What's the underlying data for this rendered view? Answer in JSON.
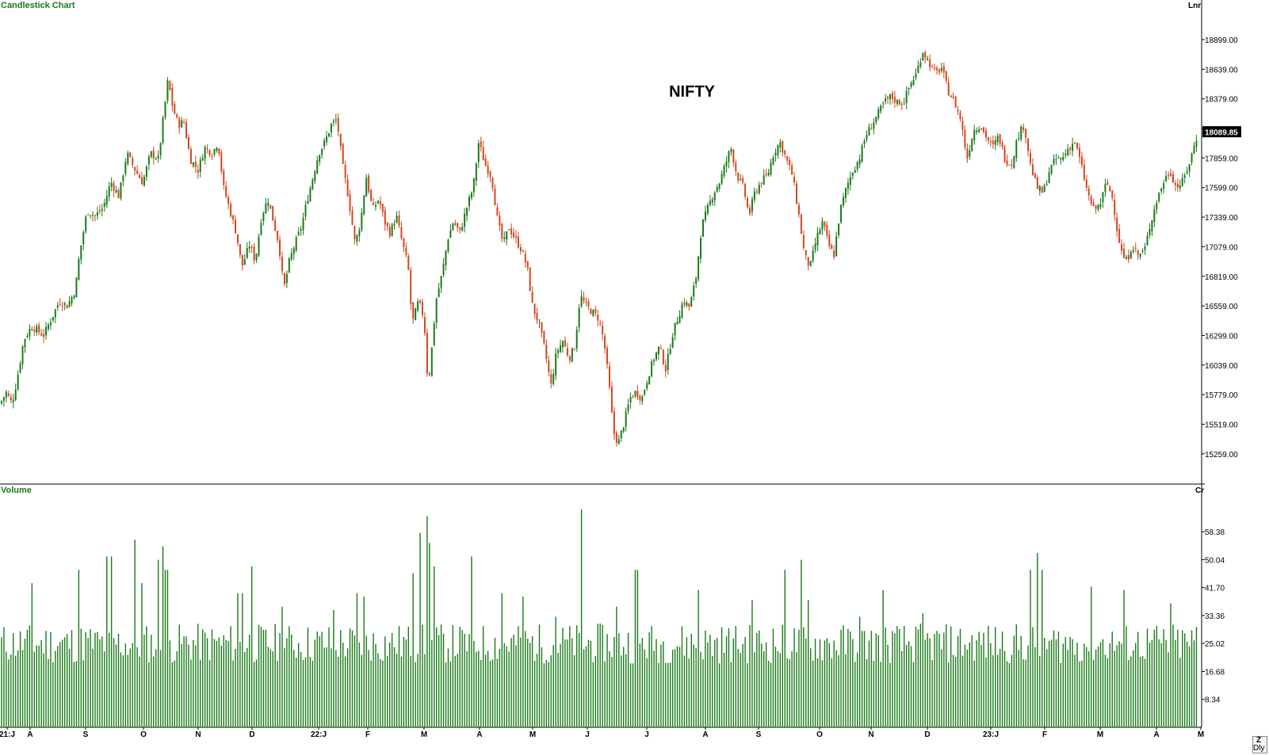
{
  "panels": {
    "price_label": "Candlestick Chart",
    "price_scale": "Lnr",
    "volume_label": "Volume",
    "volume_scale": "Cr"
  },
  "corner_buttons": {
    "top": "Z",
    "bottom": "Dly"
  },
  "colors": {
    "up": "#1a7a1a",
    "down": "#d2461e",
    "label_green": "#1a7a1a",
    "axis": "#000000"
  },
  "chart_data": [
    {
      "type": "candlestick",
      "title": "NIFTY",
      "scale": "linear",
      "ylim": [
        15000,
        19150
      ],
      "yticks": [
        18899,
        18639,
        18379,
        18119,
        17859,
        17599,
        17339,
        17079,
        16819,
        16559,
        16299,
        16039,
        15779,
        15519,
        15259
      ],
      "ytick_labels": [
        "18899.00",
        "18639.00",
        "18379.00",
        "",
        "17859.00",
        "17599.00",
        "17339.00",
        "17079.00",
        "16819.00",
        "16559.00",
        "16299.00",
        "16039.00",
        "15779.00",
        "15519.00",
        "15259.00"
      ],
      "last_price": "18089.85",
      "xticks": [
        "21:J",
        "A",
        "S",
        "O",
        "N",
        "D",
        "22:J",
        "F",
        "M",
        "A",
        "M",
        "J",
        "J",
        "A",
        "S",
        "O",
        "N",
        "D",
        "23:J",
        "F",
        "M",
        "A",
        "M"
      ],
      "close_path": [
        [
          0,
          15700
        ],
        [
          8,
          15800
        ],
        [
          15,
          15700
        ],
        [
          20,
          15860
        ],
        [
          25,
          16050
        ],
        [
          30,
          16260
        ],
        [
          40,
          16380
        ],
        [
          55,
          16300
        ],
        [
          65,
          16450
        ],
        [
          75,
          16600
        ],
        [
          85,
          16560
        ],
        [
          95,
          16700
        ],
        [
          100,
          17000
        ],
        [
          110,
          17400
        ],
        [
          120,
          17350
        ],
        [
          130,
          17420
        ],
        [
          140,
          17650
        ],
        [
          150,
          17520
        ],
        [
          160,
          17900
        ],
        [
          170,
          17760
        ],
        [
          180,
          17640
        ],
        [
          190,
          17900
        ],
        [
          200,
          17850
        ],
        [
          205,
          18150
        ],
        [
          212,
          18550
        ],
        [
          218,
          18300
        ],
        [
          225,
          18150
        ],
        [
          232,
          18180
        ],
        [
          240,
          17850
        ],
        [
          250,
          17750
        ],
        [
          258,
          17950
        ],
        [
          268,
          17900
        ],
        [
          275,
          18000
        ],
        [
          282,
          17600
        ],
        [
          290,
          17400
        ],
        [
          298,
          17200
        ],
        [
          305,
          16900
        ],
        [
          315,
          17100
        ],
        [
          322,
          16950
        ],
        [
          330,
          17350
        ],
        [
          338,
          17500
        ],
        [
          345,
          17300
        ],
        [
          352,
          17100
        ],
        [
          358,
          16700
        ],
        [
          365,
          16950
        ],
        [
          372,
          17100
        ],
        [
          380,
          17250
        ],
        [
          388,
          17500
        ],
        [
          395,
          17700
        ],
        [
          402,
          17900
        ],
        [
          410,
          18000
        ],
        [
          418,
          18150
        ],
        [
          425,
          18200
        ],
        [
          432,
          17800
        ],
        [
          440,
          17500
        ],
        [
          448,
          17100
        ],
        [
          455,
          17300
        ],
        [
          462,
          17700
        ],
        [
          470,
          17400
        ],
        [
          478,
          17500
        ],
        [
          485,
          17300
        ],
        [
          492,
          17200
        ],
        [
          500,
          17350
        ],
        [
          508,
          17100
        ],
        [
          515,
          16900
        ],
        [
          520,
          16400
        ],
        [
          528,
          16600
        ],
        [
          535,
          16450
        ],
        [
          540,
          15850
        ],
        [
          545,
          16200
        ],
        [
          550,
          16600
        ],
        [
          558,
          16850
        ],
        [
          565,
          17150
        ],
        [
          572,
          17300
        ],
        [
          580,
          17200
        ],
        [
          590,
          17450
        ],
        [
          597,
          17600
        ],
        [
          604,
          18000
        ],
        [
          612,
          17800
        ],
        [
          620,
          17700
        ],
        [
          628,
          17300
        ],
        [
          635,
          17100
        ],
        [
          642,
          17250
        ],
        [
          650,
          17150
        ],
        [
          658,
          17050
        ],
        [
          665,
          16900
        ],
        [
          672,
          16550
        ],
        [
          680,
          16400
        ],
        [
          688,
          16150
        ],
        [
          695,
          15850
        ],
        [
          702,
          16150
        ],
        [
          710,
          16250
        ],
        [
          718,
          16100
        ],
        [
          725,
          16200
        ],
        [
          732,
          16650
        ],
        [
          740,
          16550
        ],
        [
          748,
          16500
        ],
        [
          755,
          16450
        ],
        [
          762,
          16250
        ],
        [
          768,
          15900
        ],
        [
          774,
          15450
        ],
        [
          780,
          15350
        ],
        [
          788,
          15550
        ],
        [
          795,
          15750
        ],
        [
          802,
          15800
        ],
        [
          810,
          15750
        ],
        [
          818,
          15950
        ],
        [
          825,
          16100
        ],
        [
          832,
          16200
        ],
        [
          840,
          16000
        ],
        [
          848,
          16300
        ],
        [
          855,
          16450
        ],
        [
          862,
          16600
        ],
        [
          870,
          16550
        ],
        [
          878,
          16800
        ],
        [
          885,
          17250
        ],
        [
          892,
          17400
        ],
        [
          900,
          17550
        ],
        [
          908,
          17650
        ],
        [
          915,
          17800
        ],
        [
          922,
          17950
        ],
        [
          930,
          17700
        ],
        [
          938,
          17600
        ],
        [
          945,
          17350
        ],
        [
          952,
          17550
        ],
        [
          960,
          17650
        ],
        [
          968,
          17700
        ],
        [
          976,
          17900
        ],
        [
          984,
          18000
        ],
        [
          992,
          17850
        ],
        [
          1000,
          17700
        ],
        [
          1008,
          17350
        ],
        [
          1015,
          17000
        ],
        [
          1022,
          16900
        ],
        [
          1030,
          17150
        ],
        [
          1038,
          17300
        ],
        [
          1045,
          17100
        ],
        [
          1052,
          17000
        ],
        [
          1060,
          17400
        ],
        [
          1068,
          17600
        ],
        [
          1076,
          17750
        ],
        [
          1084,
          17850
        ],
        [
          1092,
          18050
        ],
        [
          1100,
          18150
        ],
        [
          1108,
          18250
        ],
        [
          1116,
          18350
        ],
        [
          1124,
          18400
        ],
        [
          1132,
          18350
        ],
        [
          1140,
          18350
        ],
        [
          1148,
          18500
        ],
        [
          1156,
          18600
        ],
        [
          1164,
          18800
        ],
        [
          1172,
          18700
        ],
        [
          1180,
          18600
        ],
        [
          1188,
          18650
        ],
        [
          1196,
          18450
        ],
        [
          1204,
          18350
        ],
        [
          1212,
          18200
        ],
        [
          1220,
          17850
        ],
        [
          1228,
          18100
        ],
        [
          1236,
          18150
        ],
        [
          1244,
          18050
        ],
        [
          1252,
          17950
        ],
        [
          1260,
          18050
        ],
        [
          1268,
          17850
        ],
        [
          1276,
          17800
        ],
        [
          1284,
          18050
        ],
        [
          1292,
          18150
        ],
        [
          1300,
          17800
        ],
        [
          1308,
          17600
        ],
        [
          1316,
          17550
        ],
        [
          1324,
          17750
        ],
        [
          1332,
          17850
        ],
        [
          1340,
          17850
        ],
        [
          1348,
          17950
        ],
        [
          1356,
          18000
        ],
        [
          1364,
          17800
        ],
        [
          1372,
          17550
        ],
        [
          1380,
          17400
        ],
        [
          1388,
          17450
        ],
        [
          1396,
          17650
        ],
        [
          1404,
          17500
        ],
        [
          1410,
          17200
        ],
        [
          1416,
          17000
        ],
        [
          1422,
          16950
        ],
        [
          1428,
          17100
        ],
        [
          1436,
          17000
        ],
        [
          1444,
          17050
        ],
        [
          1452,
          17300
        ],
        [
          1460,
          17500
        ],
        [
          1468,
          17650
        ],
        [
          1476,
          17750
        ],
        [
          1484,
          17600
        ],
        [
          1492,
          17650
        ],
        [
          1500,
          17800
        ],
        [
          1508,
          18000
        ],
        [
          1512,
          18090
        ]
      ]
    },
    {
      "type": "bar",
      "title": "Volume",
      "unit": "Cr",
      "ylim": [
        0,
        70
      ],
      "yticks": [
        8.34,
        16.68,
        25.02,
        33.36,
        41.7,
        50.04,
        58.38
      ],
      "ytick_labels": [
        "8.34",
        "16.68",
        "25.02",
        "33.36",
        "41.70",
        "50.04",
        "58.38"
      ],
      "base_level": 25,
      "spikes": [
        [
          40,
          43
        ],
        [
          100,
          47
        ],
        [
          135,
          51
        ],
        [
          140,
          51
        ],
        [
          170,
          56
        ],
        [
          180,
          43
        ],
        [
          200,
          50
        ],
        [
          207,
          54
        ],
        [
          210,
          47
        ],
        [
          300,
          40
        ],
        [
          307,
          40
        ],
        [
          318,
          48
        ],
        [
          355,
          36
        ],
        [
          420,
          35
        ],
        [
          450,
          40
        ],
        [
          460,
          39
        ],
        [
          520,
          46
        ],
        [
          530,
          58
        ],
        [
          538,
          63
        ],
        [
          542,
          55
        ],
        [
          547,
          48
        ],
        [
          595,
          51
        ],
        [
          633,
          40
        ],
        [
          660,
          39
        ],
        [
          702,
          33
        ],
        [
          734,
          65
        ],
        [
          778,
          36
        ],
        [
          803,
          47
        ],
        [
          880,
          41
        ],
        [
          950,
          38
        ],
        [
          990,
          47
        ],
        [
          1010,
          50
        ],
        [
          1020,
          38
        ],
        [
          1085,
          33
        ],
        [
          1115,
          41
        ],
        [
          1163,
          34
        ],
        [
          1300,
          47
        ],
        [
          1308,
          52
        ],
        [
          1314,
          47
        ],
        [
          1378,
          42
        ],
        [
          1418,
          41
        ],
        [
          1476,
          37
        ],
        [
          1510,
          30
        ]
      ]
    }
  ]
}
